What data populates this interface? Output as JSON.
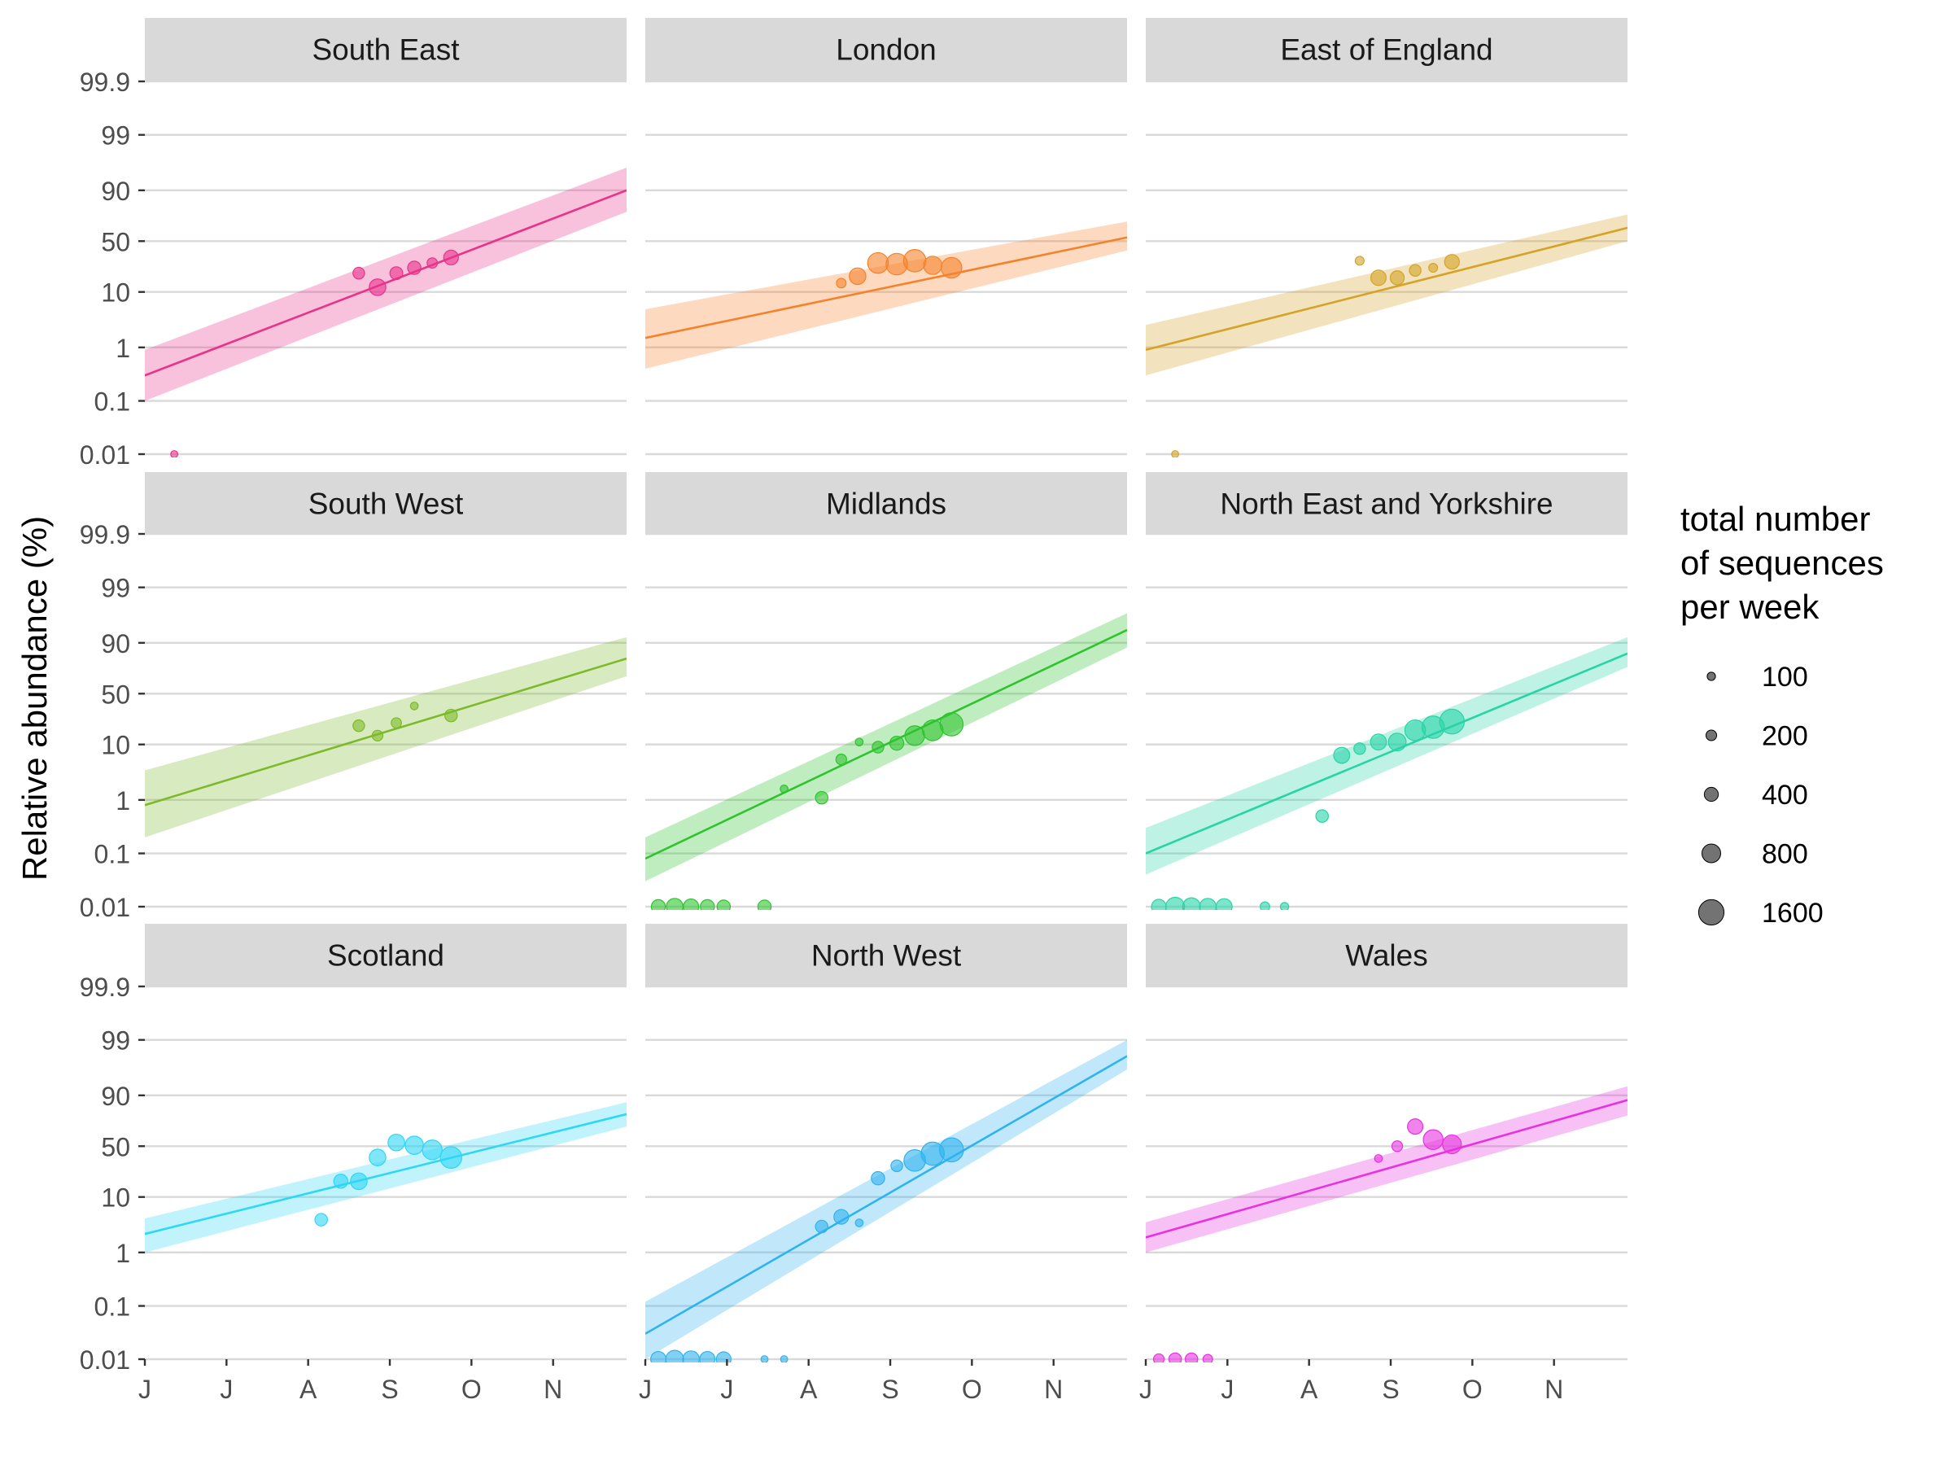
{
  "chart_data": {
    "type": "scatter",
    "title": "",
    "ylabel": "Relative abundance (%)",
    "xlabel": "",
    "x_ticks": [
      "J",
      "J",
      "A",
      "S",
      "O",
      "N"
    ],
    "y_ticks": [
      "0.01",
      "0.1",
      "1",
      "10",
      "50",
      "90",
      "99",
      "99.9"
    ],
    "y_scale": "logit",
    "grid": "horizontal major",
    "legend": {
      "title_lines": [
        "total number",
        "of sequences",
        "per week"
      ],
      "placement": "right",
      "sizes": [
        100,
        200,
        400,
        800,
        1600
      ],
      "labels": [
        "100",
        "200",
        "400",
        "800",
        "1600"
      ]
    },
    "panels": [
      {
        "name": "South East",
        "color": "#E8338A",
        "fit": {
          "start": 0.3,
          "end": 90,
          "lower_start": 0.1,
          "upper_start": 0.9,
          "lower_end": 78,
          "upper_end": 96
        },
        "points": [
          {
            "t": 0.36,
            "y": 0.01,
            "n": 60
          },
          {
            "t": 2.62,
            "y": 20,
            "n": 250
          },
          {
            "t": 2.85,
            "y": 12,
            "n": 600
          },
          {
            "t": 3.08,
            "y": 20,
            "n": 320
          },
          {
            "t": 3.3,
            "y": 24,
            "n": 350
          },
          {
            "t": 3.52,
            "y": 28,
            "n": 180
          },
          {
            "t": 3.75,
            "y": 33,
            "n": 450
          }
        ]
      },
      {
        "name": "London",
        "color": "#F5822B",
        "fit": {
          "start": 1.5,
          "end": 54,
          "lower_start": 0.4,
          "upper_start": 5,
          "lower_end": 40,
          "upper_end": 70
        },
        "points": [
          {
            "t": 2.4,
            "y": 14,
            "n": 150
          },
          {
            "t": 2.6,
            "y": 18,
            "n": 600
          },
          {
            "t": 2.85,
            "y": 28,
            "n": 1000
          },
          {
            "t": 3.08,
            "y": 27,
            "n": 1100
          },
          {
            "t": 3.3,
            "y": 30,
            "n": 1200
          },
          {
            "t": 3.52,
            "y": 26,
            "n": 750
          },
          {
            "t": 3.75,
            "y": 24,
            "n": 1000
          }
        ]
      },
      {
        "name": "East of England",
        "color": "#D4A327",
        "fit": {
          "start": 0.9,
          "end": 64,
          "lower_start": 0.3,
          "upper_start": 2.6,
          "lower_end": 50,
          "upper_end": 76
        },
        "points": [
          {
            "t": 0.36,
            "y": 0.01,
            "n": 60
          },
          {
            "t": 2.62,
            "y": 30,
            "n": 120
          },
          {
            "t": 2.85,
            "y": 17,
            "n": 500
          },
          {
            "t": 3.08,
            "y": 17,
            "n": 400
          },
          {
            "t": 3.3,
            "y": 22,
            "n": 250
          },
          {
            "t": 3.52,
            "y": 24,
            "n": 120
          },
          {
            "t": 3.75,
            "y": 29,
            "n": 450
          }
        ]
      },
      {
        "name": "South West",
        "color": "#7DBA2A",
        "fit": {
          "start": 0.8,
          "end": 82,
          "lower_start": 0.2,
          "upper_start": 3.5,
          "lower_end": 68,
          "upper_end": 92
        },
        "points": [
          {
            "t": 2.62,
            "y": 20,
            "n": 250
          },
          {
            "t": 2.85,
            "y": 14,
            "n": 200
          },
          {
            "t": 3.08,
            "y": 22,
            "n": 180
          },
          {
            "t": 3.3,
            "y": 37,
            "n": 80
          },
          {
            "t": 3.75,
            "y": 28,
            "n": 300
          }
        ]
      },
      {
        "name": "Midlands",
        "color": "#2EC42E",
        "fit": {
          "start": 0.08,
          "end": 94,
          "lower_start": 0.03,
          "upper_start": 0.2,
          "lower_end": 88,
          "upper_end": 97
        },
        "points": [
          {
            "t": 0.16,
            "y": 0.01,
            "n": 400
          },
          {
            "t": 0.36,
            "y": 0.01,
            "n": 600
          },
          {
            "t": 0.56,
            "y": 0.01,
            "n": 500
          },
          {
            "t": 0.76,
            "y": 0.01,
            "n": 400
          },
          {
            "t": 0.96,
            "y": 0.01,
            "n": 350
          },
          {
            "t": 1.46,
            "y": 0.01,
            "n": 350
          },
          {
            "t": 1.7,
            "y": 1.6,
            "n": 80
          },
          {
            "t": 2.16,
            "y": 1.1,
            "n": 300
          },
          {
            "t": 2.4,
            "y": 5.5,
            "n": 200
          },
          {
            "t": 2.62,
            "y": 11,
            "n": 80
          },
          {
            "t": 2.85,
            "y": 9,
            "n": 250
          },
          {
            "t": 3.08,
            "y": 10.5,
            "n": 400
          },
          {
            "t": 3.3,
            "y": 14,
            "n": 900
          },
          {
            "t": 3.52,
            "y": 17,
            "n": 1000
          },
          {
            "t": 3.75,
            "y": 21,
            "n": 1300
          }
        ]
      },
      {
        "name": "North East and Yorkshire",
        "color": "#27D4A6",
        "fit": {
          "start": 0.1,
          "end": 85,
          "lower_start": 0.04,
          "upper_start": 0.3,
          "lower_end": 76,
          "upper_end": 92
        },
        "points": [
          {
            "t": 0.16,
            "y": 0.01,
            "n": 450
          },
          {
            "t": 0.36,
            "y": 0.01,
            "n": 800
          },
          {
            "t": 0.56,
            "y": 0.01,
            "n": 700
          },
          {
            "t": 0.76,
            "y": 0.01,
            "n": 600
          },
          {
            "t": 0.96,
            "y": 0.01,
            "n": 550
          },
          {
            "t": 1.46,
            "y": 0.01,
            "n": 150
          },
          {
            "t": 1.7,
            "y": 0.01,
            "n": 100
          },
          {
            "t": 2.16,
            "y": 0.5,
            "n": 300
          },
          {
            "t": 2.4,
            "y": 6.5,
            "n": 550
          },
          {
            "t": 2.62,
            "y": 8.5,
            "n": 250
          },
          {
            "t": 2.85,
            "y": 11,
            "n": 550
          },
          {
            "t": 3.08,
            "y": 11,
            "n": 700
          },
          {
            "t": 3.3,
            "y": 17,
            "n": 1000
          },
          {
            "t": 3.52,
            "y": 19,
            "n": 1200
          },
          {
            "t": 3.75,
            "y": 23,
            "n": 1500
          }
        ]
      },
      {
        "name": "Scotland",
        "color": "#2FD6F5",
        "fit": {
          "start": 2.2,
          "end": 80,
          "lower_start": 1,
          "upper_start": 4.2,
          "lower_end": 70,
          "upper_end": 87
        },
        "points": [
          {
            "t": 2.16,
            "y": 4,
            "n": 300
          },
          {
            "t": 2.4,
            "y": 18,
            "n": 400
          },
          {
            "t": 2.62,
            "y": 18,
            "n": 600
          },
          {
            "t": 2.85,
            "y": 38,
            "n": 600
          },
          {
            "t": 3.08,
            "y": 54,
            "n": 600
          },
          {
            "t": 3.3,
            "y": 51,
            "n": 750
          },
          {
            "t": 3.52,
            "y": 46,
            "n": 900
          },
          {
            "t": 3.75,
            "y": 38,
            "n": 1100
          }
        ]
      },
      {
        "name": "North West",
        "color": "#2FB3EE",
        "fit": {
          "start": 0.03,
          "end": 98,
          "lower_start": 0.01,
          "upper_start": 0.12,
          "lower_end": 96.5,
          "upper_end": 99
        },
        "points": [
          {
            "t": 0.16,
            "y": 0.01,
            "n": 500
          },
          {
            "t": 0.36,
            "y": 0.01,
            "n": 700
          },
          {
            "t": 0.56,
            "y": 0.01,
            "n": 600
          },
          {
            "t": 0.76,
            "y": 0.01,
            "n": 500
          },
          {
            "t": 0.96,
            "y": 0.01,
            "n": 450
          },
          {
            "t": 1.46,
            "y": 0.01,
            "n": 60
          },
          {
            "t": 1.7,
            "y": 0.01,
            "n": 60
          },
          {
            "t": 2.16,
            "y": 3,
            "n": 300
          },
          {
            "t": 2.4,
            "y": 4.5,
            "n": 450
          },
          {
            "t": 2.62,
            "y": 3.5,
            "n": 80
          },
          {
            "t": 2.85,
            "y": 20,
            "n": 350
          },
          {
            "t": 3.08,
            "y": 30,
            "n": 250
          },
          {
            "t": 3.3,
            "y": 35,
            "n": 1100
          },
          {
            "t": 3.52,
            "y": 42,
            "n": 1300
          },
          {
            "t": 3.75,
            "y": 46,
            "n": 1400
          }
        ]
      },
      {
        "name": "Wales",
        "color": "#E732E0",
        "fit": {
          "start": 1.9,
          "end": 88,
          "lower_start": 1,
          "upper_start": 3.6,
          "lower_end": 79,
          "upper_end": 93
        },
        "points": [
          {
            "t": 0.16,
            "y": 0.01,
            "n": 200
          },
          {
            "t": 0.36,
            "y": 0.01,
            "n": 300
          },
          {
            "t": 0.56,
            "y": 0.01,
            "n": 300
          },
          {
            "t": 0.76,
            "y": 0.01,
            "n": 150
          },
          {
            "t": 2.85,
            "y": 37,
            "n": 80
          },
          {
            "t": 3.08,
            "y": 50,
            "n": 200
          },
          {
            "t": 3.3,
            "y": 70,
            "n": 500
          },
          {
            "t": 3.52,
            "y": 57,
            "n": 900
          },
          {
            "t": 3.75,
            "y": 52,
            "n": 800
          }
        ]
      }
    ]
  }
}
